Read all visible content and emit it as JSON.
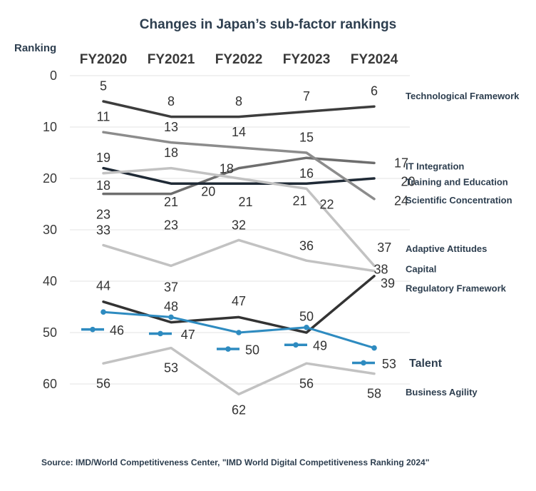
{
  "chart_data": {
    "type": "line",
    "title": "Changes in Japan’s sub-factor rankings",
    "ylabel": "Ranking",
    "xlabel": "",
    "categories": [
      "FY2020",
      "FY2021",
      "FY2022",
      "FY2023",
      "FY2024"
    ],
    "yticks": [
      "0",
      "10",
      "20",
      "30",
      "40",
      "50",
      "60"
    ],
    "ylim": [
      0,
      60
    ],
    "y_inverted": true,
    "grid": true,
    "series": [
      {
        "name": "Technological Framework",
        "values": [
          5,
          8,
          8,
          7,
          6
        ],
        "color": "#3d3d3d"
      },
      {
        "name": "IT Integration",
        "values": [
          23,
          23,
          18,
          16,
          17
        ],
        "color": "#6e6e6e"
      },
      {
        "name": "Training and Education",
        "values": [
          18,
          21,
          21,
          21,
          20
        ],
        "color": "#1f2a36"
      },
      {
        "name": "Scientific Concentration",
        "values": [
          11,
          13,
          14,
          15,
          24
        ],
        "color": "#8c8c8c"
      },
      {
        "name": "Adaptive Attitudes",
        "values": [
          33,
          37,
          32,
          36,
          38
        ],
        "color": "#c2c2c2"
      },
      {
        "name": "Capital",
        "values": [
          19,
          18,
          20,
          22,
          37
        ],
        "color": "#c2c2c2"
      },
      {
        "name": "Regulatory Framework",
        "values": [
          44,
          48,
          47,
          50,
          39
        ],
        "color": "#333333"
      },
      {
        "name": "Talent",
        "values": [
          46,
          47,
          50,
          49,
          53
        ],
        "color": "#2e8bc0",
        "highlight": true
      },
      {
        "name": "Business Agility",
        "values": [
          56,
          53,
          62,
          56,
          58
        ],
        "color": "#c2c2c2"
      }
    ],
    "data_labels": [
      {
        "text": "5",
        "cat": 0,
        "y": 2
      },
      {
        "text": "8",
        "cat": 1,
        "y": 5
      },
      {
        "text": "8",
        "cat": 2,
        "y": 5
      },
      {
        "text": "7",
        "cat": 3,
        "y": 4
      },
      {
        "text": "6",
        "cat": 4,
        "y": 3
      },
      {
        "text": "11",
        "cat": 0,
        "y": 8
      },
      {
        "text": "13",
        "cat": 1,
        "y": 10
      },
      {
        "text": "14",
        "cat": 2,
        "y": 11
      },
      {
        "text": "15",
        "cat": 3,
        "y": 12
      },
      {
        "text": "19",
        "cat": 0,
        "y": 16
      },
      {
        "text": "18",
        "cat": 1,
        "y": 15
      },
      {
        "text": "18",
        "cat": 2,
        "y": 18.1,
        "dx": -0.18
      },
      {
        "text": "16",
        "cat": 3,
        "y": 19
      },
      {
        "text": "17",
        "cat": 4,
        "y": 17,
        "dx": 0.4
      },
      {
        "text": "20",
        "cat": 4,
        "y": 20.6,
        "dx": 0.5
      },
      {
        "text": "24",
        "cat": 4,
        "y": 24.4,
        "dx": 0.4
      },
      {
        "text": "18",
        "cat": 0,
        "y": 21.4
      },
      {
        "text": "21",
        "cat": 1,
        "y": 24.6
      },
      {
        "text": "20",
        "cat": 2,
        "y": 22.6,
        "dx": -0.45
      },
      {
        "text": "21",
        "cat": 2,
        "y": 24.6,
        "dx": 0.1
      },
      {
        "text": "21",
        "cat": 3,
        "y": 24.4,
        "dx": -0.1
      },
      {
        "text": "22",
        "cat": 3,
        "y": 25.1,
        "dx": 0.3
      },
      {
        "text": "23",
        "cat": 0,
        "y": 27
      },
      {
        "text": "33",
        "cat": 0,
        "y": 30.1
      },
      {
        "text": "23",
        "cat": 1,
        "y": 29.1
      },
      {
        "text": "32",
        "cat": 2,
        "y": 29.1
      },
      {
        "text": "37",
        "cat": 1,
        "y": 41.2
      },
      {
        "text": "36",
        "cat": 3,
        "y": 33.1
      },
      {
        "text": "37",
        "cat": 4,
        "y": 33.5,
        "dx": 0.15
      },
      {
        "text": "38",
        "cat": 4,
        "y": 37.7,
        "dx": 0.1
      },
      {
        "text": "39",
        "cat": 4,
        "y": 40.4,
        "dx": 0.2
      },
      {
        "text": "44",
        "cat": 0,
        "y": 40.9
      },
      {
        "text": "48",
        "cat": 1,
        "y": 44.9
      },
      {
        "text": "47",
        "cat": 2,
        "y": 43.9
      },
      {
        "text": "50",
        "cat": 3,
        "y": 46.9
      },
      {
        "text": "46",
        "cat": 0,
        "y": 49.6,
        "dx": 0.2
      },
      {
        "text": "47",
        "cat": 1,
        "y": 50.4,
        "dx": 0.25
      },
      {
        "text": "50",
        "cat": 2,
        "y": 53.4,
        "dx": 0.2
      },
      {
        "text": "49",
        "cat": 3,
        "y": 52.6,
        "dx": 0.2
      },
      {
        "text": "53",
        "cat": 4,
        "y": 56.1,
        "dx": 0.22
      },
      {
        "text": "56",
        "cat": 0,
        "y": 59.9
      },
      {
        "text": "53",
        "cat": 1,
        "y": 56.9
      },
      {
        "text": "62",
        "cat": 2,
        "y": 65.1
      },
      {
        "text": "56",
        "cat": 3,
        "y": 59.9
      },
      {
        "text": "58",
        "cat": 4,
        "y": 61.9
      }
    ],
    "legend_markers": [
      {
        "cat": 0,
        "y": 49.4
      },
      {
        "cat": 1,
        "y": 50.2
      },
      {
        "cat": 2,
        "y": 53.2
      },
      {
        "cat": 3,
        "y": 52.4
      },
      {
        "cat": 4,
        "y": 55.9
      }
    ],
    "series_labels": [
      {
        "text": "Technological Framework",
        "y": 3.9
      },
      {
        "text": "IT Integration",
        "y": 17.6
      },
      {
        "text": "Training and Education",
        "y": 20.6
      },
      {
        "text": "Scientific Concentration",
        "y": 24.2
      },
      {
        "text": "Adaptive Attitudes",
        "y": 33.6
      },
      {
        "text": "Capital",
        "y": 37.6
      },
      {
        "text": "Regulatory Framework",
        "y": 41.3
      },
      {
        "text": "Talent",
        "y": 56.0,
        "color": "#2e8bc0"
      },
      {
        "text": "Business Agility",
        "y": 61.5
      }
    ],
    "source": "Source: IMD/World Competitiveness Center, \"IMD World Digital Competitiveness Ranking 2024\""
  }
}
